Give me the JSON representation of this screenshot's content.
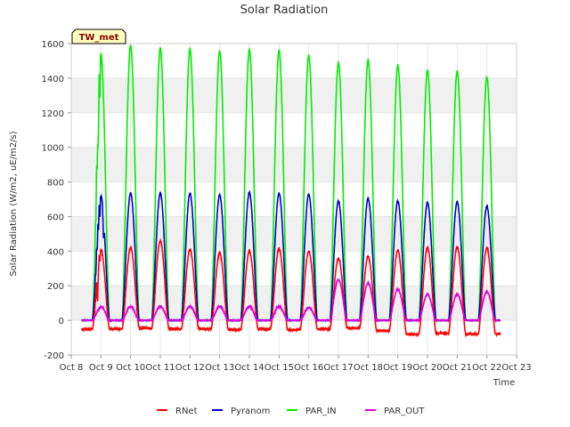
{
  "chart_data": {
    "type": "line",
    "title": "Solar Radiation",
    "station_label": "TW_met",
    "xlabel": "Time",
    "ylabel": "Solar Radiation (W/m2, uE/m2/s)",
    "xlim": [
      8,
      23
    ],
    "ylim": [
      -200,
      1600
    ],
    "x_ticks": [
      8,
      9,
      10,
      11,
      12,
      13,
      14,
      15,
      16,
      17,
      18,
      19,
      20,
      21,
      22,
      23
    ],
    "x_tick_labels": [
      "Oct 8",
      "Oct 9",
      "Oct 10",
      "Oct 11",
      "Oct 12",
      "Oct 13",
      "Oct 14",
      "Oct 15",
      "Oct 16",
      "Oct 17",
      "Oct 18",
      "Oct 19",
      "Oct 20",
      "Oct 21",
      "Oct 22",
      "Oct 23"
    ],
    "y_ticks": [
      -200,
      0,
      200,
      400,
      600,
      800,
      1000,
      1200,
      1400,
      1600
    ],
    "y_tick_labels": [
      "-200",
      "0",
      "200",
      "400",
      "600",
      "800",
      "1000",
      "1200",
      "1400",
      "1600"
    ],
    "grid": true,
    "legend_position": "bottom",
    "x_range_note": "data spans Oct 8.35 to Oct 22.45",
    "series": [
      {
        "name": "RNet",
        "color": "#ff0000",
        "night_values": [
          -50,
          -50,
          -45,
          -50,
          -50,
          -55,
          -50,
          -55,
          -50,
          -45,
          -60,
          -80,
          -75,
          -80,
          -80
        ],
        "daily_peaks": [
          410,
          420,
          460,
          410,
          390,
          400,
          415,
          400,
          360,
          370,
          405,
          420,
          425,
          420
        ]
      },
      {
        "name": "Pyranom",
        "color": "#0000cc",
        "night_values": [
          0,
          0,
          0,
          0,
          0,
          0,
          0,
          0,
          0,
          0,
          0,
          0,
          0,
          0,
          0
        ],
        "daily_peaks": [
          720,
          735,
          735,
          735,
          725,
          740,
          735,
          730,
          690,
          705,
          690,
          680,
          685,
          660
        ]
      },
      {
        "name": "PAR_IN",
        "color": "#00ee00",
        "night_values": [
          0,
          0,
          0,
          0,
          0,
          0,
          0,
          0,
          0,
          0,
          0,
          0,
          0,
          0,
          0
        ],
        "daily_peaks": [
          1540,
          1590,
          1575,
          1570,
          1555,
          1565,
          1560,
          1530,
          1490,
          1505,
          1475,
          1445,
          1440,
          1405
        ]
      },
      {
        "name": "PAR_OUT",
        "color": "#dd00dd",
        "night_values": [
          0,
          0,
          0,
          0,
          0,
          0,
          0,
          0,
          0,
          0,
          0,
          0,
          0,
          0,
          0
        ],
        "daily_peaks": [
          80,
          80,
          80,
          80,
          80,
          80,
          80,
          75,
          235,
          215,
          180,
          150,
          150,
          165
        ]
      }
    ],
    "day_centers": [
      9.0,
      10.0,
      11.0,
      12.0,
      13.0,
      14.0,
      15.0,
      16.0,
      17.0,
      18.0,
      19.0,
      20.0,
      21.0,
      22.0
    ]
  }
}
